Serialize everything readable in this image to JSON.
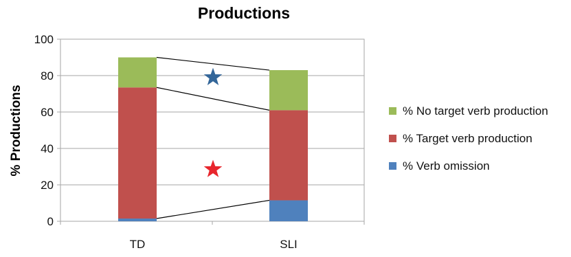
{
  "chart_data": {
    "type": "bar",
    "stacked": true,
    "title": "Productions",
    "xlabel": "",
    "ylabel": "% Productions",
    "ylim": [
      0,
      100
    ],
    "yticks": [
      0,
      20,
      40,
      60,
      80,
      100
    ],
    "grid": true,
    "legend_position": "right",
    "categories": [
      "TD",
      "SLI"
    ],
    "series": [
      {
        "name": "% Verb omission",
        "values": [
          1.5,
          11.5
        ],
        "color": "#4f81bd"
      },
      {
        "name": "% Target verb production",
        "values": [
          72,
          49.5
        ],
        "color": "#c0504d"
      },
      {
        "name": "% No target verb production",
        "values": [
          16.5,
          22
        ],
        "color": "#9bbb59"
      }
    ],
    "legend_order": [
      "% No target verb production",
      "% Target verb production",
      "% Verb omission"
    ],
    "annotations": [
      {
        "type": "star",
        "color": "#336699",
        "x_between": [
          "TD",
          "SLI"
        ],
        "y": 79
      },
      {
        "type": "star",
        "color": "#e8262d",
        "x_between": [
          "TD",
          "SLI"
        ],
        "y": 28.5
      }
    ]
  }
}
